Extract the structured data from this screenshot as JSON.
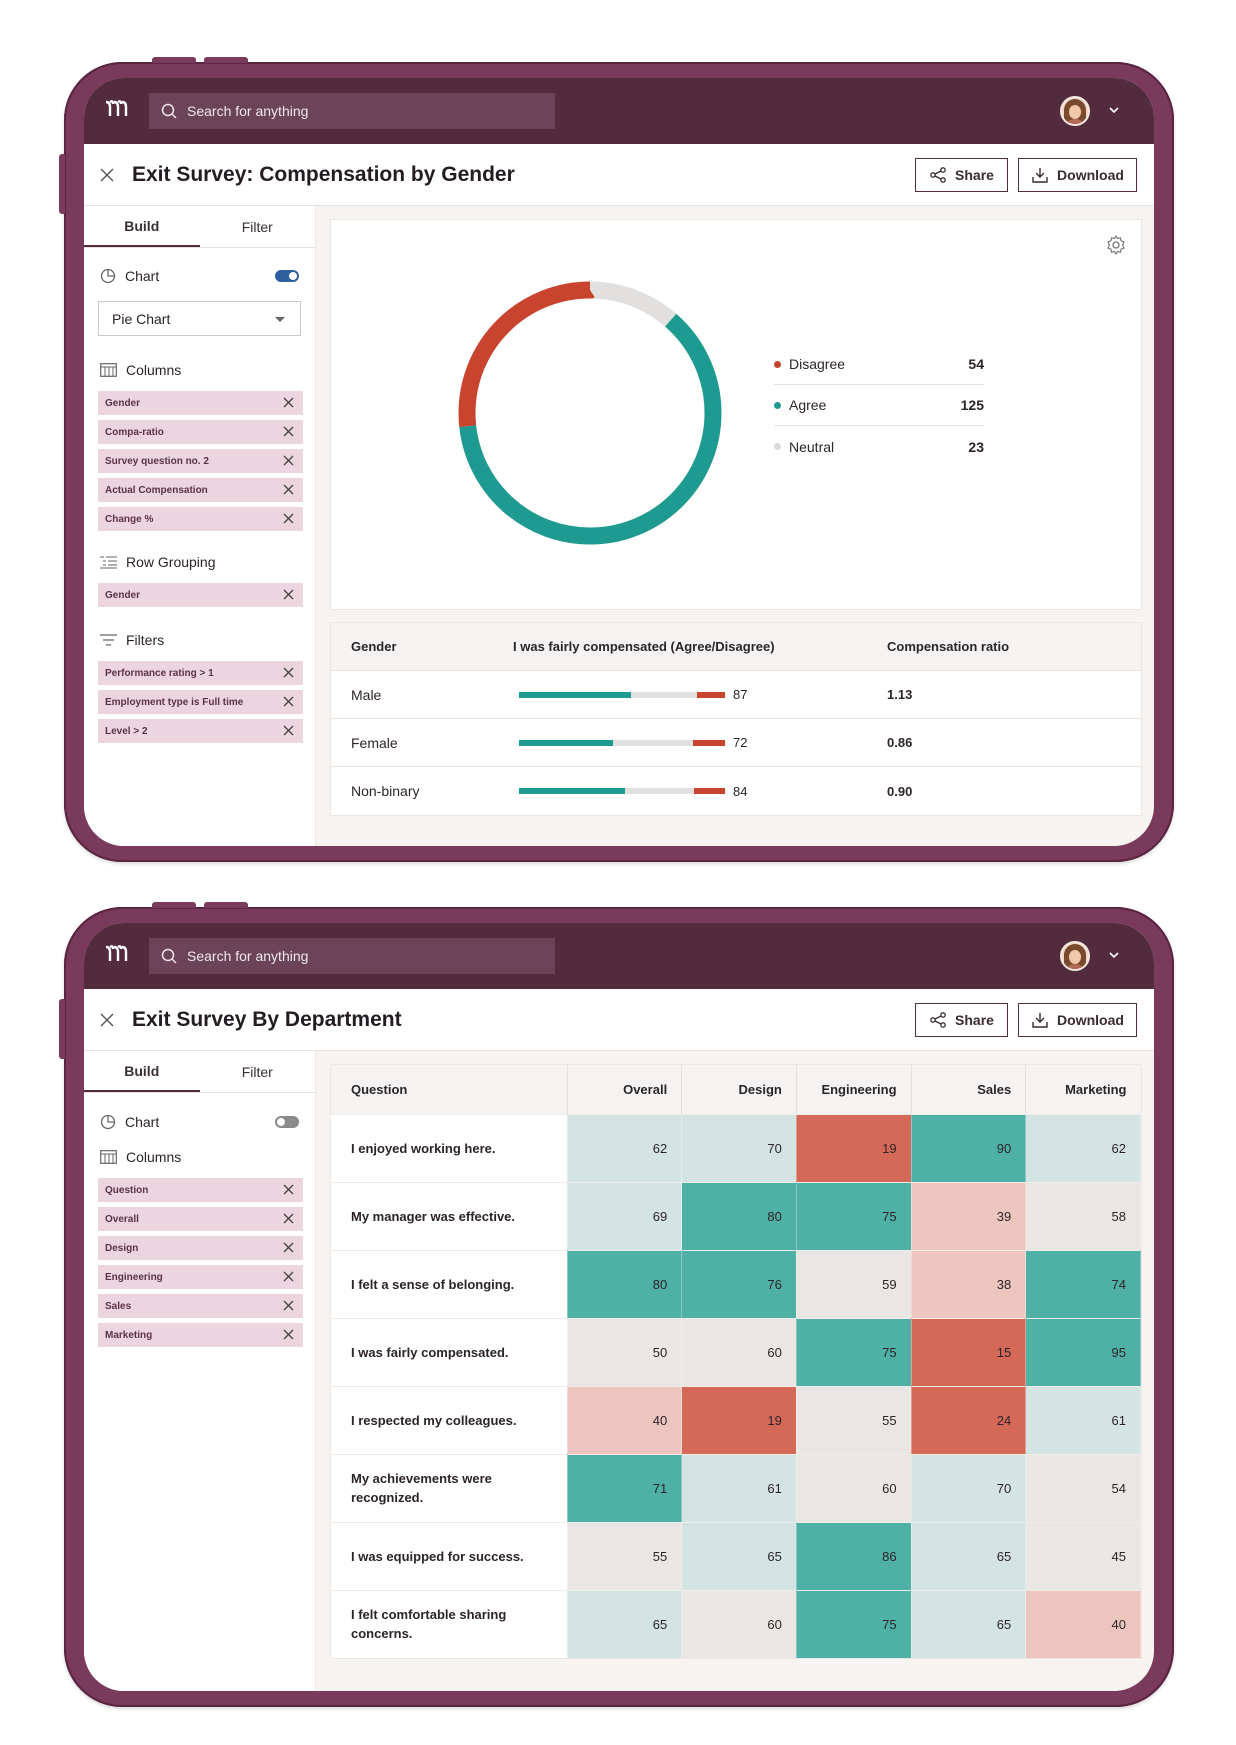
{
  "colors": {
    "frame": "#7a3a5c",
    "topbar": "#522b3d",
    "teal": "#1f9a90",
    "red": "#c8442f",
    "neutral": "#e2e0de",
    "pill": "#ecd5df"
  },
  "topbar": {
    "logo": "Ɍ",
    "search_placeholder": "Search for anything"
  },
  "actions": {
    "share": "Share",
    "download": "Download"
  },
  "tabs": {
    "build": "Build",
    "filter": "Filter"
  },
  "screen1": {
    "title": "Exit Survey: Compensation by Gender",
    "sidebar": {
      "chart_label": "Chart",
      "chart_toggle": "on",
      "chart_type": "Pie Chart",
      "columns_label": "Columns",
      "columns": [
        "Gender",
        "Compa-ratio",
        "Survey question no. 2",
        "Actual Compensation",
        "Change %"
      ],
      "row_grouping_label": "Row Grouping",
      "row_grouping": [
        "Gender"
      ],
      "filters_label": "Filters",
      "filters": [
        "Performance rating > 1",
        "Employment type is Full time",
        "Level > 2"
      ]
    },
    "table": {
      "headers": [
        "Gender",
        "I was fairly compensated (Agree/Disagree)",
        "Compensation ratio"
      ],
      "rows": [
        {
          "gender": "Male",
          "agree_fraction": 0.545,
          "disagree_fraction": 0.135,
          "value": "87",
          "ratio": "1.13"
        },
        {
          "gender": "Female",
          "agree_fraction": 0.455,
          "disagree_fraction": 0.155,
          "value": "72",
          "ratio": "0.86"
        },
        {
          "gender": "Non-binary",
          "agree_fraction": 0.515,
          "disagree_fraction": 0.15,
          "value": "84",
          "ratio": "0.90"
        }
      ]
    }
  },
  "chart_data": {
    "type": "pie",
    "categories": [
      "Disagree",
      "Agree",
      "Neutral"
    ],
    "values": [
      54,
      125,
      23
    ],
    "colors": [
      "#c8442f",
      "#1f9a90",
      "#e2e0de"
    ],
    "variant": "donut",
    "legend_position": "right"
  },
  "screen2": {
    "title": "Exit Survey By Department",
    "sidebar": {
      "chart_label": "Chart",
      "chart_toggle": "off",
      "columns_label": "Columns",
      "columns": [
        "Question",
        "Overall",
        "Design",
        "Engineering",
        "Sales",
        "Marketing"
      ]
    },
    "heatmap": {
      "headers": [
        "Question",
        "Overall",
        "Design",
        "Engineering",
        "Sales",
        "Marketing"
      ],
      "rows": [
        {
          "question": "I enjoyed working here.",
          "values": [
            62,
            70,
            19,
            90,
            62
          ]
        },
        {
          "question": "My manager was effective.",
          "values": [
            69,
            80,
            75,
            39,
            58
          ]
        },
        {
          "question": "I felt a sense of belonging.",
          "values": [
            80,
            76,
            59,
            38,
            74
          ]
        },
        {
          "question": "I was fairly compensated.",
          "values": [
            50,
            60,
            75,
            15,
            95
          ]
        },
        {
          "question": "I respected my colleagues.",
          "values": [
            40,
            19,
            55,
            24,
            61
          ]
        },
        {
          "question": "My achievements were recognized.",
          "values": [
            71,
            61,
            60,
            70,
            54
          ]
        },
        {
          "question": "I was equipped for success.",
          "values": [
            55,
            65,
            86,
            65,
            45
          ]
        },
        {
          "question": "I felt comfortable sharing concerns.",
          "values": [
            65,
            60,
            75,
            65,
            40
          ]
        }
      ]
    }
  }
}
